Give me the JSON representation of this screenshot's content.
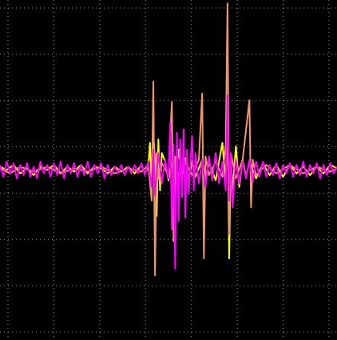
{
  "chart_data": {
    "type": "line",
    "grid": true,
    "x_divisions": 7,
    "y_divisions": 7,
    "xlim": [
      0,
      1
    ],
    "ylim": [
      -1,
      1
    ],
    "colors": {
      "background": "#000000",
      "grid": "#8a8a8a"
    },
    "series": [
      {
        "color": "#ffff00",
        "points": [
          [
            0.0,
            0.02
          ],
          [
            0.02,
            0.0
          ],
          [
            0.04,
            0.03
          ],
          [
            0.06,
            -0.02
          ],
          [
            0.08,
            0.01
          ],
          [
            0.1,
            -0.03
          ],
          [
            0.12,
            0.02
          ],
          [
            0.14,
            0.0
          ],
          [
            0.16,
            0.03
          ],
          [
            0.18,
            -0.02
          ],
          [
            0.2,
            0.02
          ],
          [
            0.22,
            -0.01
          ],
          [
            0.24,
            0.03
          ],
          [
            0.26,
            -0.02
          ],
          [
            0.28,
            0.02
          ],
          [
            0.3,
            0.01
          ],
          [
            0.32,
            -0.02
          ],
          [
            0.34,
            0.02
          ],
          [
            0.36,
            -0.01
          ],
          [
            0.38,
            0.02
          ],
          [
            0.4,
            -0.02
          ],
          [
            0.42,
            0.03
          ],
          [
            0.43,
            -0.02
          ],
          [
            0.44,
            0.02
          ],
          [
            0.445,
            0.16
          ],
          [
            0.45,
            -0.08
          ],
          [
            0.455,
            0.22
          ],
          [
            0.46,
            0.05
          ],
          [
            0.465,
            -0.27
          ],
          [
            0.47,
            0.18
          ],
          [
            0.475,
            -0.12
          ],
          [
            0.48,
            0.1
          ],
          [
            0.49,
            0.05
          ],
          [
            0.5,
            -0.06
          ],
          [
            0.51,
            0.04
          ],
          [
            0.52,
            -0.08
          ],
          [
            0.53,
            0.12
          ],
          [
            0.54,
            -0.05
          ],
          [
            0.55,
            0.07
          ],
          [
            0.56,
            -0.06
          ],
          [
            0.57,
            0.05
          ],
          [
            0.58,
            -0.04
          ],
          [
            0.6,
            0.06
          ],
          [
            0.61,
            -0.05
          ],
          [
            0.62,
            0.04
          ],
          [
            0.64,
            -0.06
          ],
          [
            0.66,
            0.16
          ],
          [
            0.67,
            -0.08
          ],
          [
            0.675,
            0.38
          ],
          [
            0.68,
            -0.52
          ],
          [
            0.685,
            0.08
          ],
          [
            0.69,
            -0.12
          ],
          [
            0.7,
            0.14
          ],
          [
            0.71,
            -0.1
          ],
          [
            0.72,
            0.06
          ],
          [
            0.73,
            -0.04
          ],
          [
            0.74,
            0.05
          ],
          [
            0.76,
            -0.05
          ],
          [
            0.78,
            0.04
          ],
          [
            0.8,
            -0.03
          ],
          [
            0.82,
            0.03
          ],
          [
            0.84,
            -0.04
          ],
          [
            0.86,
            0.03
          ],
          [
            0.88,
            -0.02
          ],
          [
            0.9,
            0.02
          ],
          [
            0.92,
            -0.03
          ],
          [
            0.94,
            0.02
          ],
          [
            0.96,
            -0.02
          ],
          [
            0.98,
            0.03
          ],
          [
            1.0,
            0.01
          ]
        ]
      },
      {
        "color": "#f0966e",
        "points": [
          [
            0.0,
            0.01
          ],
          [
            0.03,
            -0.02
          ],
          [
            0.06,
            0.02
          ],
          [
            0.1,
            -0.01
          ],
          [
            0.14,
            0.02
          ],
          [
            0.18,
            -0.02
          ],
          [
            0.22,
            0.01
          ],
          [
            0.26,
            -0.01
          ],
          [
            0.3,
            0.02
          ],
          [
            0.34,
            -0.02
          ],
          [
            0.38,
            0.01
          ],
          [
            0.42,
            -0.01
          ],
          [
            0.44,
            0.03
          ],
          [
            0.45,
            -0.18
          ],
          [
            0.455,
            0.52
          ],
          [
            0.46,
            -0.62
          ],
          [
            0.465,
            0.1
          ],
          [
            0.47,
            -0.05
          ],
          [
            0.48,
            0.04
          ],
          [
            0.5,
            -0.03
          ],
          [
            0.51,
            0.4
          ],
          [
            0.515,
            -0.42
          ],
          [
            0.52,
            0.08
          ],
          [
            0.53,
            -0.04
          ],
          [
            0.55,
            0.05
          ],
          [
            0.57,
            -0.03
          ],
          [
            0.59,
            0.06
          ],
          [
            0.6,
            0.45
          ],
          [
            0.605,
            -0.52
          ],
          [
            0.61,
            0.08
          ],
          [
            0.62,
            -0.03
          ],
          [
            0.64,
            0.05
          ],
          [
            0.66,
            -0.04
          ],
          [
            0.67,
            0.15
          ],
          [
            0.675,
            0.98
          ],
          [
            0.68,
            -0.38
          ],
          [
            0.685,
            0.1
          ],
          [
            0.7,
            -0.05
          ],
          [
            0.72,
            0.06
          ],
          [
            0.74,
            0.41
          ],
          [
            0.745,
            -0.22
          ],
          [
            0.75,
            0.06
          ],
          [
            0.76,
            -0.03
          ],
          [
            0.79,
            0.03
          ],
          [
            0.82,
            -0.02
          ],
          [
            0.86,
            0.03
          ],
          [
            0.9,
            -0.02
          ],
          [
            0.94,
            0.02
          ],
          [
            0.98,
            -0.01
          ],
          [
            1.0,
            0.01
          ]
        ]
      },
      {
        "color": "#ff00ff",
        "points": [
          [
            0.0,
            0.03
          ],
          [
            0.01,
            -0.04
          ],
          [
            0.02,
            0.05
          ],
          [
            0.03,
            -0.02
          ],
          [
            0.04,
            0.04
          ],
          [
            0.05,
            -0.05
          ],
          [
            0.06,
            0.03
          ],
          [
            0.07,
            -0.03
          ],
          [
            0.08,
            0.04
          ],
          [
            0.09,
            -0.04
          ],
          [
            0.1,
            0.02
          ],
          [
            0.11,
            -0.05
          ],
          [
            0.12,
            0.05
          ],
          [
            0.13,
            -0.02
          ],
          [
            0.14,
            0.03
          ],
          [
            0.15,
            -0.04
          ],
          [
            0.16,
            0.04
          ],
          [
            0.17,
            -0.03
          ],
          [
            0.18,
            0.05
          ],
          [
            0.19,
            -0.05
          ],
          [
            0.2,
            0.03
          ],
          [
            0.21,
            -0.02
          ],
          [
            0.22,
            0.04
          ],
          [
            0.23,
            -0.04
          ],
          [
            0.24,
            0.03
          ],
          [
            0.25,
            -0.03
          ],
          [
            0.26,
            0.05
          ],
          [
            0.27,
            -0.04
          ],
          [
            0.28,
            0.03
          ],
          [
            0.29,
            -0.02
          ],
          [
            0.3,
            0.04
          ],
          [
            0.31,
            -0.05
          ],
          [
            0.32,
            0.03
          ],
          [
            0.33,
            -0.03
          ],
          [
            0.34,
            0.02
          ],
          [
            0.35,
            -0.02
          ],
          [
            0.36,
            0.03
          ],
          [
            0.37,
            -0.03
          ],
          [
            0.38,
            0.02
          ],
          [
            0.39,
            -0.02
          ],
          [
            0.4,
            0.03
          ],
          [
            0.41,
            -0.02
          ],
          [
            0.42,
            0.04
          ],
          [
            0.43,
            -0.03
          ],
          [
            0.44,
            0.05
          ],
          [
            0.45,
            -0.1
          ],
          [
            0.455,
            0.12
          ],
          [
            0.46,
            -0.15
          ],
          [
            0.47,
            0.1
          ],
          [
            0.48,
            -0.08
          ],
          [
            0.49,
            0.06
          ],
          [
            0.5,
            -0.05
          ],
          [
            0.505,
            0.28
          ],
          [
            0.51,
            -0.35
          ],
          [
            0.515,
            0.15
          ],
          [
            0.52,
            -0.58
          ],
          [
            0.525,
            0.22
          ],
          [
            0.53,
            -0.3
          ],
          [
            0.535,
            0.18
          ],
          [
            0.54,
            -0.16
          ],
          [
            0.545,
            0.24
          ],
          [
            0.55,
            -0.28
          ],
          [
            0.555,
            0.12
          ],
          [
            0.56,
            -0.14
          ],
          [
            0.57,
            0.2
          ],
          [
            0.575,
            -0.12
          ],
          [
            0.58,
            0.1
          ],
          [
            0.59,
            -0.08
          ],
          [
            0.6,
            0.06
          ],
          [
            0.61,
            -0.1
          ],
          [
            0.62,
            0.08
          ],
          [
            0.63,
            -0.06
          ],
          [
            0.64,
            0.1
          ],
          [
            0.65,
            -0.08
          ],
          [
            0.66,
            0.05
          ],
          [
            0.67,
            -0.12
          ],
          [
            0.675,
            0.44
          ],
          [
            0.68,
            -0.18
          ],
          [
            0.685,
            0.1
          ],
          [
            0.69,
            -0.22
          ],
          [
            0.7,
            0.06
          ],
          [
            0.71,
            -0.08
          ],
          [
            0.72,
            0.05
          ],
          [
            0.73,
            -0.05
          ],
          [
            0.74,
            0.06
          ],
          [
            0.75,
            -0.07
          ],
          [
            0.76,
            0.05
          ],
          [
            0.77,
            -0.04
          ],
          [
            0.78,
            0.05
          ],
          [
            0.79,
            -0.04
          ],
          [
            0.8,
            0.03
          ],
          [
            0.81,
            -0.03
          ],
          [
            0.82,
            0.04
          ],
          [
            0.83,
            -0.05
          ],
          [
            0.84,
            0.03
          ],
          [
            0.85,
            -0.02
          ],
          [
            0.86,
            0.04
          ],
          [
            0.87,
            -0.04
          ],
          [
            0.88,
            0.03
          ],
          [
            0.89,
            -0.03
          ],
          [
            0.9,
            0.05
          ],
          [
            0.91,
            -0.04
          ],
          [
            0.92,
            0.03
          ],
          [
            0.93,
            -0.02
          ],
          [
            0.94,
            0.04
          ],
          [
            0.95,
            -0.05
          ],
          [
            0.96,
            0.03
          ],
          [
            0.97,
            -0.03
          ],
          [
            0.98,
            0.04
          ],
          [
            0.99,
            -0.02
          ],
          [
            1.0,
            0.02
          ]
        ]
      }
    ]
  }
}
